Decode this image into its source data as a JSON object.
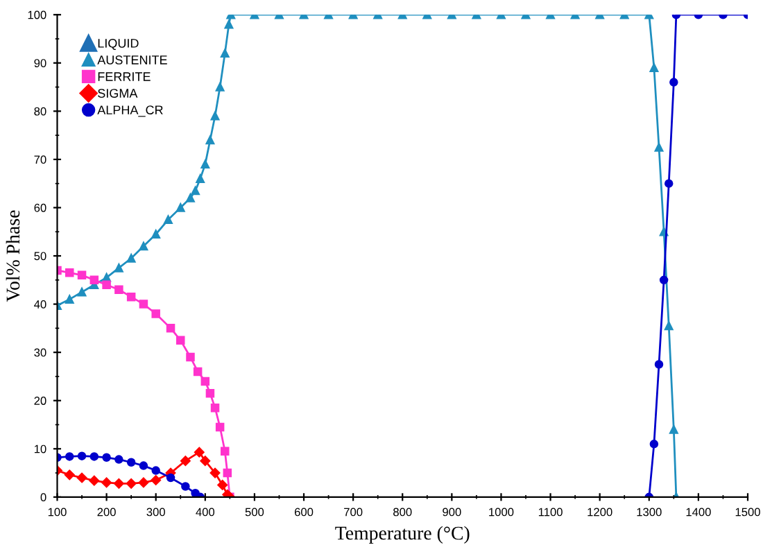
{
  "chart_data": {
    "type": "line",
    "xlabel": "Temperature (°C)",
    "ylabel": "Vol% Phase",
    "xlim": [
      100,
      1500
    ],
    "xticks": [
      100,
      200,
      300,
      400,
      500,
      600,
      700,
      800,
      900,
      1000,
      1100,
      1200,
      1300,
      1400,
      1500
    ],
    "ylim": [
      0,
      100
    ],
    "yticks": [
      0,
      10,
      20,
      30,
      40,
      50,
      60,
      70,
      80,
      90,
      100
    ],
    "grid": false,
    "legend": "top left",
    "series": [
      {
        "name": "LIQUID",
        "color": "#1f6fb5",
        "marker": "triangle"
      },
      {
        "name": "AUSTENITE",
        "color": "#1f8fbf",
        "marker": "triangle",
        "x": [
          100,
          125,
          150,
          175,
          200,
          225,
          250,
          275,
          300,
          325,
          350,
          370,
          380,
          390,
          400,
          410,
          420,
          430,
          440,
          448,
          452,
          500,
          550,
          600,
          650,
          700,
          750,
          800,
          850,
          900,
          950,
          1000,
          1050,
          1100,
          1150,
          1200,
          1250,
          1300,
          1310,
          1320,
          1330,
          1340,
          1350,
          1355
        ],
        "values": [
          39.7,
          41,
          42.5,
          44,
          45.5,
          47.5,
          49.5,
          52,
          54.5,
          57.5,
          60,
          62,
          63.5,
          66,
          69,
          74,
          79,
          85,
          92,
          98,
          100,
          100,
          100,
          100,
          100,
          100,
          100,
          100,
          100,
          100,
          100,
          100,
          100,
          100,
          100,
          100,
          100,
          100,
          89,
          72.5,
          55,
          35.5,
          14,
          0
        ]
      },
      {
        "name": "FERRITE",
        "color": "#ff33cc",
        "marker": "square",
        "x": [
          100,
          125,
          150,
          175,
          200,
          225,
          250,
          275,
          300,
          330,
          350,
          370,
          385,
          400,
          410,
          420,
          430,
          440,
          445,
          450
        ],
        "values": [
          47,
          46.5,
          46,
          45,
          44,
          43,
          41.5,
          40,
          38,
          35,
          32.5,
          29,
          26,
          24,
          21.5,
          18.5,
          14.5,
          9.5,
          5,
          0
        ]
      },
      {
        "name": "SIGMA",
        "color": "#ff0000",
        "marker": "diamond",
        "x": [
          100,
          125,
          150,
          175,
          200,
          225,
          250,
          275,
          300,
          330,
          360,
          388,
          400,
          420,
          435,
          445,
          450
        ],
        "values": [
          5.5,
          4.6,
          4,
          3.4,
          3,
          2.8,
          2.8,
          3,
          3.5,
          5,
          7.5,
          9.3,
          7.5,
          5,
          2.5,
          0.5,
          0
        ]
      },
      {
        "name": "ALPHA_CR",
        "color": "#0000cc",
        "marker": "circle",
        "x": [
          100,
          125,
          150,
          175,
          200,
          225,
          250,
          275,
          300,
          330,
          360,
          380,
          390,
          1000,
          1300,
          1310,
          1320,
          1330,
          1340,
          1350,
          1355,
          1400,
          1450,
          1500
        ],
        "values": [
          8.2,
          8.4,
          8.5,
          8.4,
          8.2,
          7.8,
          7.2,
          6.5,
          5.5,
          4,
          2.2,
          0.8,
          0,
          null,
          0,
          11,
          27.5,
          45,
          65,
          86,
          100,
          100,
          100,
          100
        ]
      }
    ]
  }
}
